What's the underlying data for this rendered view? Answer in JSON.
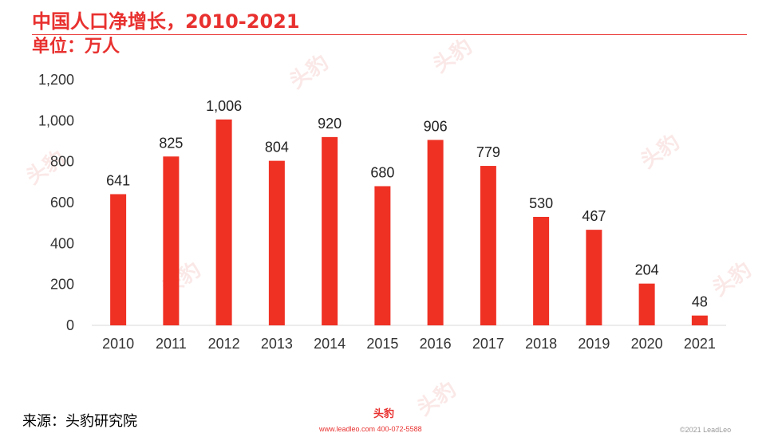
{
  "header": {
    "title": "中国人口净增长，2010-2021",
    "subtitle": "单位：万人"
  },
  "colors": {
    "accent": "#e8312f",
    "bar": "#ef3124",
    "axis_text": "#333333",
    "rule": "#e8312f"
  },
  "chart_data": {
    "type": "bar",
    "categories": [
      "2010",
      "2011",
      "2012",
      "2013",
      "2014",
      "2015",
      "2016",
      "2017",
      "2018",
      "2019",
      "2020",
      "2021"
    ],
    "values": [
      641,
      825,
      1006,
      804,
      920,
      680,
      906,
      779,
      530,
      467,
      204,
      48
    ],
    "data_labels": [
      "641",
      "825",
      "1,006",
      "804",
      "920",
      "680",
      "906",
      "779",
      "530",
      "467",
      "204",
      "48"
    ],
    "y_ticks": [
      "0",
      "200",
      "400",
      "600",
      "800",
      "1,000",
      "1,200"
    ],
    "ylim": [
      0,
      1200
    ],
    "grid": false,
    "legend": "none"
  },
  "footer": {
    "source": "来源：头豹研究院",
    "brand": "头豹",
    "contact": "www.leadleo.com  400-072-5588",
    "copyright": "©2021 LeadLeo"
  },
  "watermark": {
    "text": "头豹"
  }
}
